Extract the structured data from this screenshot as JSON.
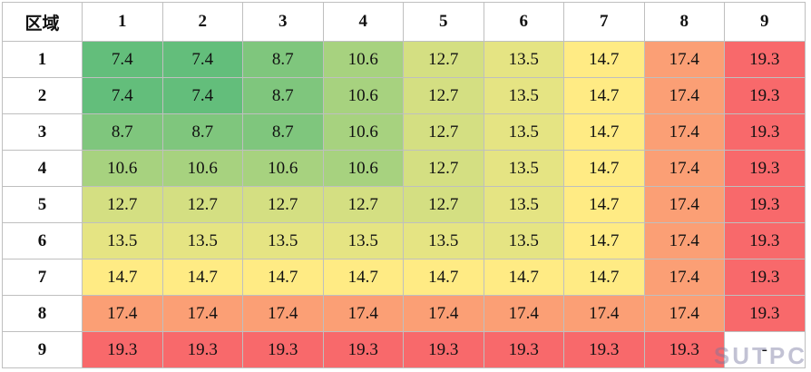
{
  "table": {
    "header": [
      "区域",
      "1",
      "2",
      "3",
      "4",
      "5",
      "6",
      "7",
      "8",
      "9"
    ],
    "rows": [
      {
        "label": "1",
        "cells": [
          7.4,
          7.4,
          8.7,
          10.6,
          12.7,
          13.5,
          14.7,
          17.4,
          19.3
        ]
      },
      {
        "label": "2",
        "cells": [
          7.4,
          7.4,
          8.7,
          10.6,
          12.7,
          13.5,
          14.7,
          17.4,
          19.3
        ]
      },
      {
        "label": "3",
        "cells": [
          8.7,
          8.7,
          8.7,
          10.6,
          12.7,
          13.5,
          14.7,
          17.4,
          19.3
        ]
      },
      {
        "label": "4",
        "cells": [
          10.6,
          10.6,
          10.6,
          10.6,
          12.7,
          13.5,
          14.7,
          17.4,
          19.3
        ]
      },
      {
        "label": "5",
        "cells": [
          12.7,
          12.7,
          12.7,
          12.7,
          12.7,
          13.5,
          14.7,
          17.4,
          19.3
        ]
      },
      {
        "label": "6",
        "cells": [
          13.5,
          13.5,
          13.5,
          13.5,
          13.5,
          13.5,
          14.7,
          17.4,
          19.3
        ]
      },
      {
        "label": "7",
        "cells": [
          14.7,
          14.7,
          14.7,
          14.7,
          14.7,
          14.7,
          14.7,
          17.4,
          19.3
        ]
      },
      {
        "label": "8",
        "cells": [
          17.4,
          17.4,
          17.4,
          17.4,
          17.4,
          17.4,
          17.4,
          17.4,
          19.3
        ]
      },
      {
        "label": "9",
        "cells": [
          19.3,
          19.3,
          19.3,
          19.3,
          19.3,
          19.3,
          19.3,
          19.3,
          "-"
        ]
      }
    ]
  },
  "watermark": "SUTPC"
}
